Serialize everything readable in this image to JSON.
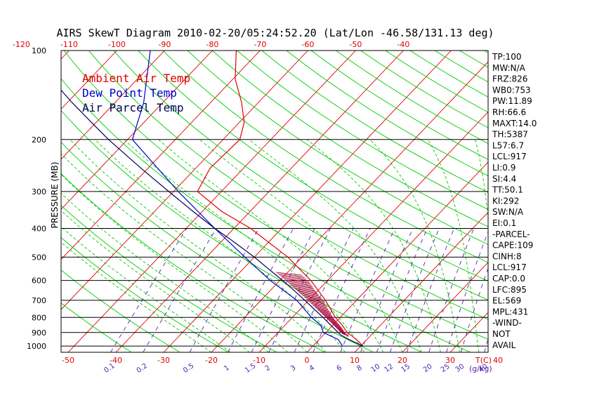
{
  "chart_data": {
    "type": "line",
    "title": "AIRS SkewT Diagram 2010-02-20/05:24:52.20 (Lat/Lon -46.58/131.13 deg)",
    "ylabel": "PRESSURE (MB)",
    "xlabel": "T(C)",
    "mixing_ratio_label": "(g/kg)",
    "pressure_ticks": [
      100,
      200,
      300,
      400,
      500,
      600,
      700,
      800,
      900,
      1000
    ],
    "top_temperature_ticks": [
      -120,
      -110,
      -100,
      -90,
      -80,
      -70,
      -60,
      -50,
      -40
    ],
    "bottom_temperature_ticks": [
      -50,
      -40,
      -30,
      -20,
      -10,
      0,
      10,
      20,
      30,
      40
    ],
    "mixing_ratio_ticks": [
      "0.1",
      "0.2",
      "0.5",
      "1",
      "1.5",
      "2",
      "3",
      "4",
      "6",
      "8",
      "10",
      "12",
      "15",
      "20",
      "25",
      "30",
      "40"
    ],
    "mixing_ratio_values": [
      0.1,
      0.2,
      0.5,
      1,
      1.5,
      2,
      3,
      4,
      6,
      8,
      10,
      12,
      15,
      20,
      25,
      30,
      40
    ],
    "ylim": [
      1050,
      100
    ],
    "legend": [
      "Ambient Air Temp",
      "Dew Point Temp",
      "Air Parcel Temp"
    ],
    "legend_position": "top-left",
    "grid": true,
    "colors": {
      "ambient": "#e00000",
      "dewpoint": "#0000cc",
      "parcel": "#000055",
      "isotherm": "#e00000",
      "dry_adiabat": "#00cc00",
      "moist_adiabat": "#00cc00",
      "mixing_ratio": "#5522aa",
      "isobar": "#000000",
      "cape_hatch": "#aa0033"
    },
    "series": [
      {
        "name": "Ambient Air Temp",
        "p": [
          1000,
          975,
          950,
          925,
          900,
          850,
          800,
          700,
          600,
          500,
          400,
          350,
          300,
          250,
          200,
          175,
          150,
          125,
          100
        ],
        "t": [
          10.5,
          9.2,
          7.8,
          6.2,
          4.5,
          2.0,
          -1.0,
          -6.5,
          -13.5,
          -23.0,
          -36.5,
          -46.0,
          -55.0,
          -57.0,
          -56.5,
          -59.0,
          -63.5,
          -69.5,
          -75.0
        ]
      },
      {
        "name": "Dew Point Temp",
        "p": [
          1000,
          950,
          900,
          850,
          800,
          700,
          600,
          500,
          400,
          300,
          250,
          200,
          150,
          100
        ],
        "t": [
          6.2,
          4.0,
          -0.5,
          -2.5,
          -6.0,
          -12.5,
          -22.0,
          -32.0,
          -44.0,
          -59.0,
          -68.0,
          -79.0,
          -84.0,
          -93.0
        ]
      },
      {
        "name": "Air Parcel Temp",
        "p": [
          1000,
          950,
          917,
          900,
          850,
          800,
          750,
          700,
          650,
          600,
          569,
          550,
          500,
          450,
          431,
          400,
          350,
          300,
          250,
          200,
          175,
          150,
          125,
          100
        ],
        "t": [
          10.5,
          6.2,
          3.6,
          2.6,
          -0.4,
          -3.6,
          -7.1,
          -10.8,
          -14.9,
          -19.4,
          -22.5,
          -24.5,
          -30.0,
          -36.5,
          -39.2,
          -44.0,
          -52.0,
          -61.0,
          -71.5,
          -84.0,
          -91.0,
          -99.0,
          -108.0,
          -118.0
        ]
      }
    ],
    "indices": [
      "TP:100",
      "MW:N/A",
      "FRZ:826",
      "WB0:753",
      "PW:11.89",
      "RH:66.6",
      "MAXT:14.0",
      "TH:5387",
      "L57:6.7",
      "LCL:917",
      "LI:0.9",
      "SI:4.4",
      "TT:50.1",
      "KI:292",
      "SW:N/A",
      "EI:0.1",
      "-PARCEL-",
      "CAPE:109",
      "CINH:8",
      "LCL:917",
      "CAP:0.0",
      "LFC:895",
      "EL:569",
      "MPL:431",
      "-WIND-",
      "NOT",
      "AVAIL"
    ]
  }
}
